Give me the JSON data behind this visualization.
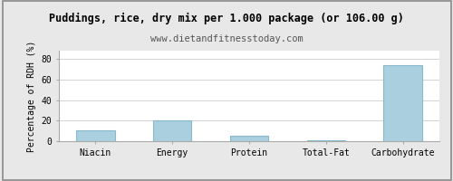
{
  "title": "Puddings, rice, dry mix per 1.000 package (or 106.00 g)",
  "subtitle": "www.dietandfitnesstoday.com",
  "categories": [
    "Niacin",
    "Energy",
    "Protein",
    "Total-Fat",
    "Carbohydrate"
  ],
  "values": [
    11,
    20,
    5,
    0.5,
    74
  ],
  "bar_color": "#aacfdf",
  "bar_edge_color": "#88b8cc",
  "ylabel": "Percentage of RDH (%)",
  "ylim": [
    0,
    88
  ],
  "yticks": [
    0,
    20,
    40,
    60,
    80
  ],
  "background_color": "#e8e8e8",
  "plot_bg_color": "#ffffff",
  "title_fontsize": 8.5,
  "subtitle_fontsize": 7.5,
  "ylabel_fontsize": 7,
  "tick_fontsize": 7,
  "grid_color": "#cccccc",
  "border_color": "#aaaaaa"
}
